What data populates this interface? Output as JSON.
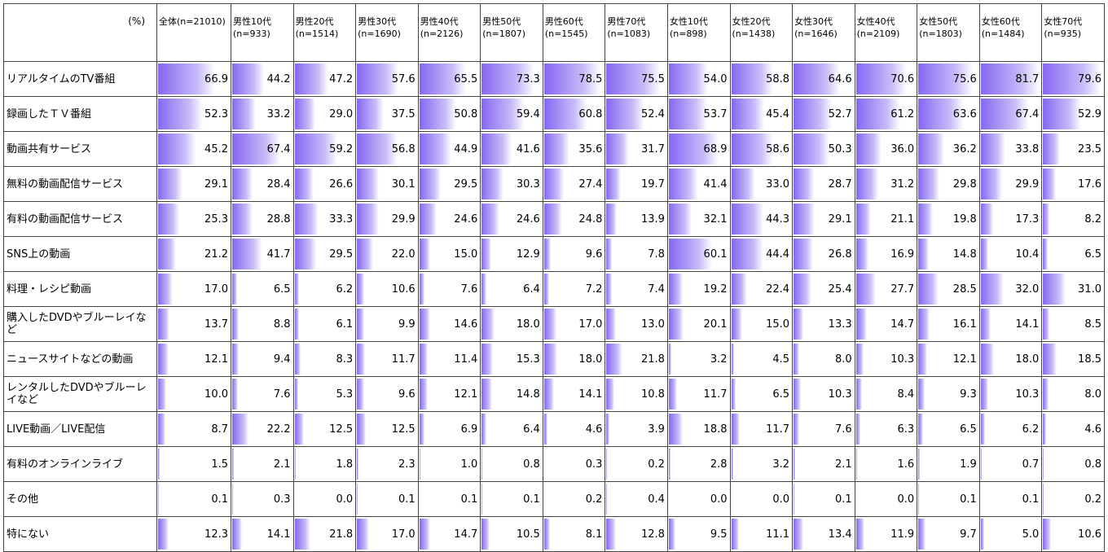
{
  "header": {
    "corner": "(%)",
    "columns": [
      {
        "label": "全体",
        "n": "(n=21010)"
      },
      {
        "label": "男性10代",
        "n": "(n=933)"
      },
      {
        "label": "男性20代",
        "n": "(n=1514)"
      },
      {
        "label": "男性30代",
        "n": "(n=1690)"
      },
      {
        "label": "男性40代",
        "n": "(n=2126)"
      },
      {
        "label": "男性50代",
        "n": "(n=1807)"
      },
      {
        "label": "男性60代",
        "n": "(n=1545)"
      },
      {
        "label": "男性70代",
        "n": "(n=1083)"
      },
      {
        "label": "女性10代",
        "n": "(n=898)"
      },
      {
        "label": "女性20代",
        "n": "(n=1438)"
      },
      {
        "label": "女性30代",
        "n": "(n=1646)"
      },
      {
        "label": "女性40代",
        "n": "(n=2109)"
      },
      {
        "label": "女性50代",
        "n": "(n=1803)"
      },
      {
        "label": "女性60代",
        "n": "(n=1484)"
      },
      {
        "label": "女性70代",
        "n": "(n=935)"
      }
    ]
  },
  "table": {
    "rows": [
      {
        "label": "リアルタイムのTV番組",
        "values": [
          "66.9",
          "44.2",
          "47.2",
          "57.6",
          "65.5",
          "73.3",
          "78.5",
          "75.5",
          "54.0",
          "58.8",
          "64.6",
          "70.6",
          "75.6",
          "81.7",
          "79.6"
        ]
      },
      {
        "label": "録画したＴＶ番組",
        "values": [
          "52.3",
          "33.2",
          "29.0",
          "37.5",
          "50.8",
          "59.4",
          "60.8",
          "52.4",
          "53.7",
          "45.4",
          "52.7",
          "61.2",
          "63.6",
          "67.4",
          "52.9"
        ]
      },
      {
        "label": "動画共有サービス",
        "values": [
          "45.2",
          "67.4",
          "59.2",
          "56.8",
          "44.9",
          "41.6",
          "35.6",
          "31.7",
          "68.9",
          "58.6",
          "50.3",
          "36.0",
          "36.2",
          "33.8",
          "23.5"
        ]
      },
      {
        "label": "無料の動画配信サービス",
        "values": [
          "29.1",
          "28.4",
          "26.6",
          "30.1",
          "29.5",
          "30.3",
          "27.4",
          "19.7",
          "41.4",
          "33.0",
          "28.7",
          "31.2",
          "29.8",
          "29.9",
          "17.6"
        ]
      },
      {
        "label": "有料の動画配信サービス",
        "values": [
          "25.3",
          "28.8",
          "33.3",
          "29.9",
          "24.6",
          "24.6",
          "24.8",
          "13.9",
          "32.1",
          "44.3",
          "29.1",
          "21.1",
          "19.8",
          "17.3",
          "8.2"
        ]
      },
      {
        "label": "SNS上の動画",
        "values": [
          "21.2",
          "41.7",
          "29.5",
          "22.0",
          "15.0",
          "12.9",
          "9.6",
          "7.8",
          "60.1",
          "44.4",
          "26.8",
          "16.9",
          "14.8",
          "10.4",
          "6.5"
        ]
      },
      {
        "label": "料理・レシピ動画",
        "values": [
          "17.0",
          "6.5",
          "6.2",
          "10.6",
          "7.6",
          "6.4",
          "7.2",
          "7.4",
          "19.2",
          "22.4",
          "25.4",
          "27.7",
          "28.5",
          "32.0",
          "31.0"
        ]
      },
      {
        "label": "購入したDVDやブルーレイなど",
        "values": [
          "13.7",
          "8.8",
          "6.1",
          "9.9",
          "14.6",
          "18.0",
          "17.0",
          "13.0",
          "20.1",
          "15.0",
          "13.3",
          "14.7",
          "16.1",
          "14.1",
          "8.5"
        ]
      },
      {
        "label": "ニュースサイトなどの動画",
        "values": [
          "12.1",
          "9.4",
          "8.3",
          "11.7",
          "11.4",
          "15.3",
          "18.0",
          "21.8",
          "3.2",
          "4.5",
          "8.0",
          "10.3",
          "12.1",
          "18.0",
          "18.5"
        ]
      },
      {
        "label": "レンタルしたDVDやブルーレイなど",
        "values": [
          "10.0",
          "7.6",
          "5.3",
          "9.6",
          "12.1",
          "14.8",
          "14.1",
          "10.8",
          "11.7",
          "6.5",
          "10.3",
          "8.4",
          "9.3",
          "10.3",
          "8.0"
        ]
      },
      {
        "label": "LIVE動画／LIVE配信",
        "values": [
          "8.7",
          "22.2",
          "12.5",
          "12.5",
          "6.9",
          "6.4",
          "4.6",
          "3.9",
          "18.8",
          "11.7",
          "7.6",
          "6.3",
          "6.5",
          "6.2",
          "4.6"
        ]
      },
      {
        "label": "有料のオンラインライブ",
        "values": [
          "1.5",
          "2.1",
          "1.8",
          "2.3",
          "1.0",
          "0.8",
          "0.3",
          "0.2",
          "2.8",
          "3.2",
          "2.1",
          "1.6",
          "1.9",
          "0.7",
          "0.8"
        ]
      },
      {
        "label": "その他",
        "values": [
          "0.1",
          "0.3",
          "0.0",
          "0.1",
          "0.1",
          "0.1",
          "0.2",
          "0.4",
          "0.0",
          "0.0",
          "0.1",
          "0.0",
          "0.1",
          "0.1",
          "0.2"
        ]
      },
      {
        "label": "特にない",
        "values": [
          "12.3",
          "14.1",
          "21.8",
          "17.0",
          "14.7",
          "10.5",
          "8.1",
          "12.8",
          "9.5",
          "11.1",
          "13.4",
          "11.9",
          "9.7",
          "5.0",
          "10.6"
        ]
      }
    ]
  }
}
